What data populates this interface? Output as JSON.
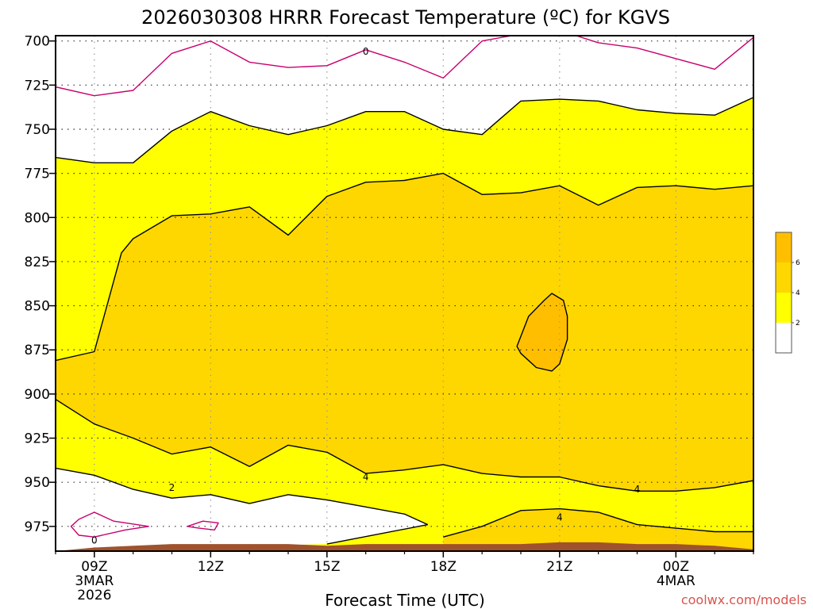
{
  "chart_data": {
    "type": "contour",
    "title": "2026030308 HRRR Forecast Temperature (ºC) for KGVS",
    "xlabel": "Forecast Time (UTC)",
    "ylabel": "",
    "credit": "coolwx.com/models",
    "y_axis": {
      "scale": "pressure (hPa), decreasing upward",
      "ticks": [
        700,
        725,
        750,
        775,
        800,
        825,
        850,
        875,
        900,
        925,
        950,
        975
      ],
      "ylim": [
        989,
        697
      ]
    },
    "x_axis": {
      "unit": "hour from 2026030308",
      "xlim": [
        0,
        18
      ],
      "ticks": [
        {
          "x": 1,
          "label": "09Z",
          "sub1": "3MAR",
          "sub2": "2026"
        },
        {
          "x": 4,
          "label": "12Z",
          "sub1": "",
          "sub2": ""
        },
        {
          "x": 7,
          "label": "15Z",
          "sub1": "",
          "sub2": ""
        },
        {
          "x": 10,
          "label": "18Z",
          "sub1": "",
          "sub2": ""
        },
        {
          "x": 13,
          "label": "21Z",
          "sub1": "",
          "sub2": ""
        },
        {
          "x": 16,
          "label": "00Z",
          "sub1": "4MAR",
          "sub2": ""
        }
      ]
    },
    "grid": true,
    "legend": {
      "placement": "right",
      "bins": [
        {
          "from": 6,
          "to": 8,
          "color": "#ffbf00"
        },
        {
          "from": 4,
          "to": 6,
          "color": "#ffd700"
        },
        {
          "from": 2,
          "to": 4,
          "color": "#ffff00"
        },
        {
          "from": 0,
          "to": 2,
          "color": "#ffffff"
        }
      ],
      "labels": [
        "6",
        "4",
        "2"
      ]
    },
    "contour_labels": [
      {
        "text": "0",
        "x": 8.0,
        "p": 706
      },
      {
        "text": "0",
        "x": 1.0,
        "p": 983
      },
      {
        "text": "2",
        "x": 3.0,
        "p": 953
      },
      {
        "text": "4",
        "x": 8.0,
        "p": 947
      },
      {
        "text": "4",
        "x": 13.0,
        "p": 970
      },
      {
        "text": "4",
        "x": 15.0,
        "p": 954
      }
    ],
    "contours": [
      {
        "level": 0,
        "color": "#c8006e",
        "points": [
          [
            0,
            726
          ],
          [
            1,
            731
          ],
          [
            2,
            728
          ],
          [
            3,
            707
          ],
          [
            4,
            700
          ],
          [
            5,
            712
          ],
          [
            6,
            715
          ],
          [
            7,
            714
          ],
          [
            8,
            705
          ],
          [
            9,
            712
          ],
          [
            10,
            721
          ],
          [
            11,
            700
          ],
          [
            12,
            696
          ],
          [
            13,
            694
          ],
          [
            14,
            701
          ],
          [
            15,
            704
          ],
          [
            16,
            710
          ],
          [
            17,
            716
          ],
          [
            18,
            698
          ]
        ]
      },
      {
        "level": 2,
        "color": "#000000",
        "points": [
          [
            0,
            766
          ],
          [
            1,
            769
          ],
          [
            2,
            769
          ],
          [
            3,
            751
          ],
          [
            4,
            740
          ],
          [
            5,
            748
          ],
          [
            6,
            753
          ],
          [
            7,
            748
          ],
          [
            8,
            740
          ],
          [
            9,
            740
          ],
          [
            10,
            750
          ],
          [
            11,
            753
          ],
          [
            12,
            734
          ],
          [
            13,
            733
          ],
          [
            14,
            734
          ],
          [
            15,
            739
          ],
          [
            16,
            741
          ],
          [
            17,
            742
          ],
          [
            18,
            732
          ]
        ]
      },
      {
        "level": 4,
        "color": "#000000",
        "points": [
          [
            0,
            881
          ],
          [
            1,
            876
          ],
          [
            1.7,
            820
          ],
          [
            2,
            812
          ],
          [
            3,
            799
          ],
          [
            4,
            798
          ],
          [
            5,
            794
          ],
          [
            6,
            810
          ],
          [
            7,
            788
          ],
          [
            8,
            780
          ],
          [
            9,
            779
          ],
          [
            10,
            775
          ],
          [
            11,
            787
          ],
          [
            12,
            786
          ],
          [
            13,
            782
          ],
          [
            14,
            793
          ],
          [
            15,
            783
          ],
          [
            16,
            782
          ],
          [
            17,
            784
          ],
          [
            18,
            782
          ]
        ]
      },
      {
        "level": 4,
        "color": "#000000",
        "points": [
          [
            0,
            903
          ],
          [
            1,
            917
          ],
          [
            2,
            925
          ],
          [
            3,
            934
          ],
          [
            4,
            930
          ],
          [
            5,
            941
          ],
          [
            6,
            929
          ],
          [
            7,
            933
          ],
          [
            8,
            945
          ],
          [
            9,
            943
          ],
          [
            10,
            940
          ],
          [
            11,
            945
          ],
          [
            12,
            947
          ],
          [
            13,
            947
          ],
          [
            14,
            952
          ],
          [
            15,
            955
          ],
          [
            16,
            955
          ],
          [
            17,
            953
          ],
          [
            18,
            949
          ]
        ]
      },
      {
        "level": 2,
        "color": "#000000",
        "points": [
          [
            0,
            942
          ],
          [
            1,
            946
          ],
          [
            2,
            954
          ],
          [
            3,
            959
          ],
          [
            4,
            957
          ],
          [
            5,
            962
          ],
          [
            6,
            957
          ],
          [
            7,
            960
          ],
          [
            8,
            964
          ],
          [
            9,
            968
          ],
          [
            9.6,
            974
          ]
        ]
      },
      {
        "level": 2,
        "color": "#000000",
        "points": [
          [
            7,
            985
          ],
          [
            9.6,
            974
          ]
        ]
      },
      {
        "level": 4,
        "color": "#000000",
        "points": [
          [
            10,
            981
          ],
          [
            11,
            975
          ],
          [
            12,
            966
          ],
          [
            13,
            965
          ],
          [
            14,
            967
          ],
          [
            15,
            974
          ],
          [
            16,
            976
          ],
          [
            17,
            978
          ],
          [
            18,
            978
          ]
        ]
      },
      {
        "level": 6,
        "color": "#000000",
        "closed": true,
        "points": [
          [
            12.6,
            847
          ],
          [
            12.8,
            843
          ],
          [
            13.1,
            847
          ],
          [
            13.2,
            856
          ],
          [
            13.2,
            869
          ],
          [
            13,
            883
          ],
          [
            12.8,
            887
          ],
          [
            12.4,
            885
          ],
          [
            12,
            877
          ],
          [
            11.9,
            873
          ],
          [
            12.2,
            856
          ]
        ]
      },
      {
        "level": 0,
        "color": "#c8006e",
        "closed": true,
        "points": [
          [
            0.4,
            975
          ],
          [
            0.6,
            971
          ],
          [
            1,
            967
          ],
          [
            1.5,
            972
          ],
          [
            2.4,
            975
          ],
          [
            1.8,
            977
          ],
          [
            1,
            981
          ],
          [
            0.6,
            980
          ]
        ]
      },
      {
        "level": 0,
        "color": "#c8006e",
        "closed": true,
        "points": [
          [
            3.4,
            975
          ],
          [
            3.8,
            972
          ],
          [
            4.2,
            973
          ],
          [
            4.1,
            977
          ],
          [
            3.7,
            976
          ]
        ]
      }
    ],
    "terrain": {
      "color": "#a0522d",
      "points": [
        [
          0,
          989
        ],
        [
          1,
          987
        ],
        [
          2,
          986
        ],
        [
          3,
          985
        ],
        [
          4,
          985
        ],
        [
          5,
          985
        ],
        [
          6,
          985
        ],
        [
          7,
          986
        ],
        [
          8,
          985
        ],
        [
          9,
          985
        ],
        [
          10,
          985
        ],
        [
          11,
          985
        ],
        [
          12,
          985
        ],
        [
          13,
          984
        ],
        [
          14,
          984
        ],
        [
          15,
          985
        ],
        [
          16,
          985
        ],
        [
          17,
          986
        ],
        [
          18,
          988
        ]
      ]
    }
  }
}
